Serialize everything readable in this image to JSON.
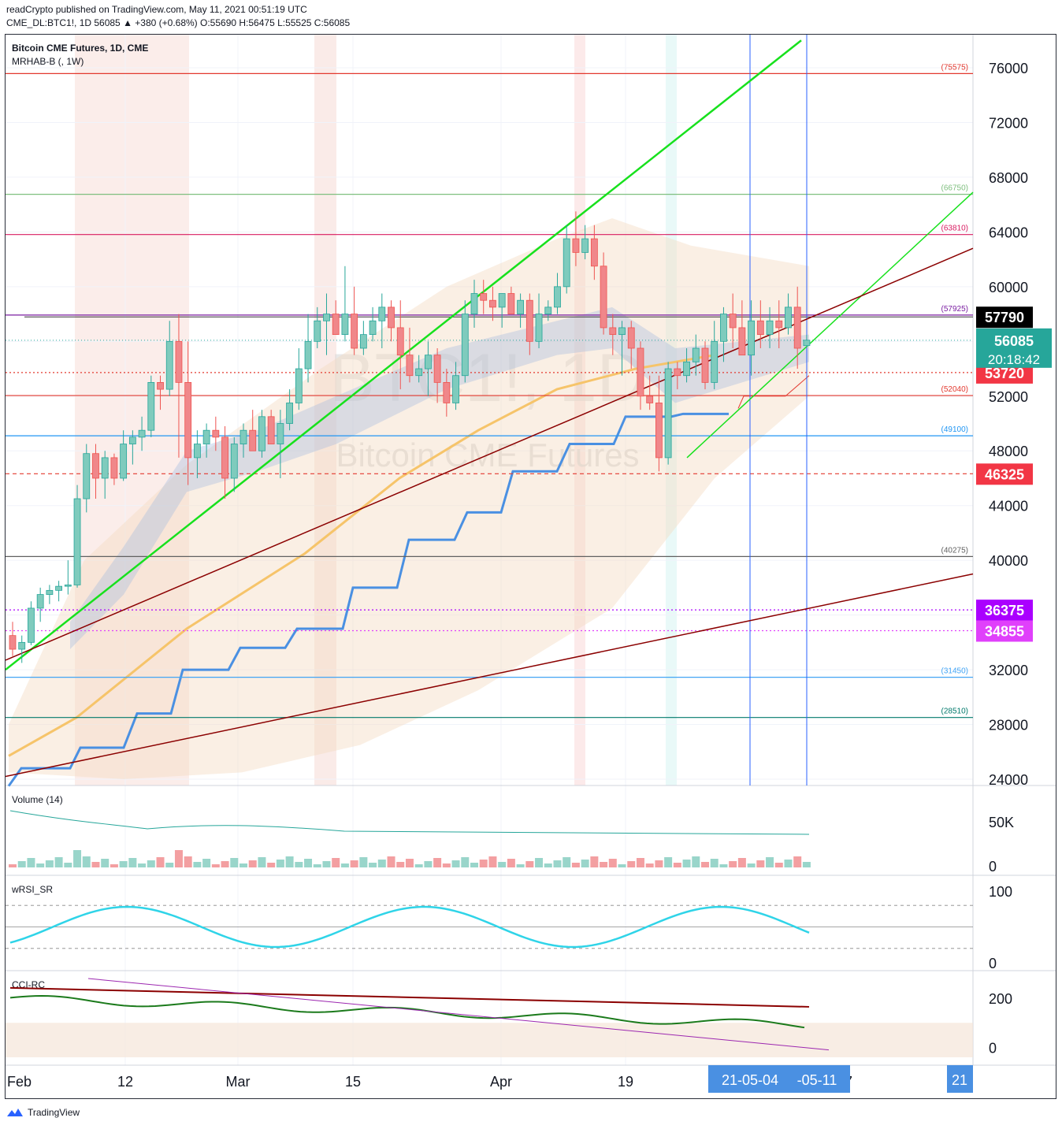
{
  "header": {
    "line1": "readCrypto published on TradingView.com, May 11, 2021 00:51:19 UTC",
    "line2": "CME_DL:BTC1!, 1D 56085 ▲ +380 (+0.68%) O:55690 H:56475 L:55525 C:56085"
  },
  "legend": {
    "title": "Bitcoin CME Futures, 1D, CME",
    "indicator": "MRHAB-B (, 1W)"
  },
  "watermark": {
    "symbol": "BTC1!, 1D",
    "name": "Bitcoin CME Futures"
  },
  "colors": {
    "up": "#7fcbbd",
    "down": "#f0878a",
    "red_level": "#e3392f",
    "green_trend": "#17e11d",
    "dark_red_trend": "#8b0000",
    "blue_steps": "#4a90e2",
    "orange_ma": "#f6c46a"
  },
  "chart_data": [
    {
      "type": "candlestick",
      "title": "Bitcoin CME Futures, 1D, CME",
      "ylim": [
        23000,
        78000
      ],
      "y_ticks": [
        "76000",
        "72000",
        "68000",
        "64000",
        "60000",
        "56000",
        "52000",
        "48000",
        "44000",
        "40000",
        "36000",
        "32000",
        "28000",
        "24000"
      ],
      "x_ticks": [
        "Feb",
        "12",
        "Mar",
        "15",
        "Apr",
        "19",
        "7",
        "21"
      ],
      "x_cursor_labels": [
        "21-05-04",
        "-05-11"
      ],
      "last_price": 56085,
      "countdown": "20:18:42",
      "price_tags": [
        {
          "label": "57790",
          "value": 57790,
          "color": "#000000"
        },
        {
          "label": "53720",
          "value": 53720,
          "color": "#f23645"
        },
        {
          "label": "46325",
          "value": 46325,
          "color": "#f23645"
        },
        {
          "label": "36375",
          "value": 36375,
          "color": "#aa00ff"
        },
        {
          "label": "34855",
          "value": 34855,
          "color": "#e040fb"
        }
      ],
      "levels": [
        {
          "label": "(75575)",
          "value": 75575,
          "color": "#e3392f"
        },
        {
          "label": "(66750)",
          "value": 66750,
          "color": "#7fbf7f"
        },
        {
          "label": "(63810)",
          "value": 63810,
          "color": "#d81b60"
        },
        {
          "label": "(57925)",
          "value": 57925,
          "color": "#7b1fa2"
        },
        {
          "label": "(52040)",
          "value": 52040,
          "color": "#e3392f"
        },
        {
          "label": "(49100)",
          "value": 49100,
          "color": "#2196f3"
        },
        {
          "label": "(40275)",
          "value": 40275,
          "color": "#616161"
        },
        {
          "label": "(31450)",
          "value": 31450,
          "color": "#42a5f5"
        },
        {
          "label": "(28510)",
          "value": 28510,
          "color": "#00796b"
        }
      ],
      "candles": [
        [
          34500,
          35500,
          33000,
          33500
        ],
        [
          33500,
          34500,
          32500,
          34000
        ],
        [
          34000,
          37000,
          33800,
          36500
        ],
        [
          36500,
          38000,
          35500,
          37500
        ],
        [
          37500,
          38200,
          36800,
          37800
        ],
        [
          37800,
          38500,
          37000,
          38100
        ],
        [
          38100,
          40000,
          37500,
          38200
        ],
        [
          38200,
          45500,
          38000,
          44500
        ],
        [
          44500,
          48500,
          43500,
          47800
        ],
        [
          47800,
          48500,
          44500,
          46000
        ],
        [
          46000,
          48000,
          44500,
          47500
        ],
        [
          47500,
          47800,
          45500,
          46000
        ],
        [
          46000,
          49500,
          45800,
          48500
        ],
        [
          48500,
          49500,
          47000,
          49000
        ],
        [
          49000,
          50500,
          48000,
          49500
        ],
        [
          49500,
          53500,
          49000,
          53000
        ],
        [
          53000,
          53500,
          51000,
          52500
        ],
        [
          52500,
          57500,
          52000,
          56000
        ],
        [
          56000,
          58000,
          47500,
          53000
        ],
        [
          53000,
          56000,
          45500,
          47500
        ],
        [
          47500,
          49500,
          46000,
          48500
        ],
        [
          48500,
          50000,
          47500,
          49500
        ],
        [
          49500,
          50500,
          48000,
          49000
        ],
        [
          49000,
          49800,
          44500,
          46000
        ],
        [
          46000,
          49000,
          45000,
          48500
        ],
        [
          48500,
          50000,
          47500,
          49500
        ],
        [
          49500,
          51000,
          48000,
          48000
        ],
        [
          48000,
          51000,
          47500,
          50500
        ],
        [
          50500,
          51000,
          48500,
          48500
        ],
        [
          48500,
          51000,
          46000,
          50000
        ],
        [
          50000,
          52500,
          49500,
          51500
        ],
        [
          51500,
          55500,
          51000,
          54000
        ],
        [
          54000,
          58000,
          53000,
          56000
        ],
        [
          56000,
          58500,
          55500,
          57500
        ],
        [
          57500,
          59500,
          55000,
          58000
        ],
        [
          58000,
          59000,
          57000,
          56500
        ],
        [
          56500,
          61500,
          56000,
          58000
        ],
        [
          58000,
          60000,
          55000,
          55500
        ],
        [
          55500,
          57500,
          55000,
          56500
        ],
        [
          56500,
          58500,
          56000,
          57500
        ],
        [
          57500,
          59500,
          55500,
          58500
        ],
        [
          58500,
          59000,
          56000,
          57000
        ],
        [
          57000,
          59000,
          52500,
          55000
        ],
        [
          55000,
          57000,
          53000,
          53500
        ],
        [
          53500,
          55000,
          53000,
          54000
        ],
        [
          54000,
          56000,
          52000,
          55000
        ],
        [
          55000,
          55500,
          51500,
          53000
        ],
        [
          53000,
          54000,
          50500,
          51500
        ],
        [
          51500,
          54500,
          51000,
          53500
        ],
        [
          53500,
          59000,
          53000,
          58000
        ],
        [
          58000,
          60500,
          57000,
          59500
        ],
        [
          59500,
          60500,
          58000,
          59000
        ],
        [
          59000,
          60000,
          57500,
          58500
        ],
        [
          58500,
          59500,
          57000,
          59500
        ],
        [
          59500,
          60000,
          58000,
          58000
        ],
        [
          58000,
          59500,
          57000,
          59000
        ],
        [
          59000,
          59500,
          55000,
          56000
        ],
        [
          56000,
          59500,
          55500,
          58000
        ],
        [
          58000,
          59000,
          57500,
          58500
        ],
        [
          58500,
          61000,
          58000,
          60000
        ],
        [
          60000,
          64500,
          59500,
          63500
        ],
        [
          63500,
          65500,
          61500,
          62500
        ],
        [
          62500,
          64500,
          62000,
          63500
        ],
        [
          63500,
          64500,
          60500,
          61500
        ],
        [
          61500,
          62500,
          56500,
          57000
        ],
        [
          57000,
          58000,
          55000,
          56500
        ],
        [
          56500,
          57500,
          53500,
          57000
        ],
        [
          57000,
          57500,
          54000,
          55500
        ],
        [
          55500,
          56000,
          51000,
          52000
        ],
        [
          52000,
          53500,
          51000,
          51500
        ],
        [
          51500,
          53500,
          46500,
          47500
        ],
        [
          47500,
          54500,
          47000,
          54000
        ],
        [
          54000,
          54500,
          52500,
          53500
        ],
        [
          53500,
          55500,
          53000,
          54500
        ],
        [
          54500,
          56500,
          53500,
          55500
        ],
        [
          55500,
          56000,
          52500,
          53000
        ],
        [
          53000,
          57500,
          52500,
          56000
        ],
        [
          56000,
          58500,
          54500,
          58000
        ],
        [
          58000,
          59500,
          55500,
          57000
        ],
        [
          57000,
          59000,
          55500,
          55000
        ],
        [
          55000,
          59000,
          53500,
          57500
        ],
        [
          57500,
          59000,
          55500,
          56500
        ],
        [
          56500,
          58500,
          55500,
          57500
        ],
        [
          57500,
          59000,
          55500,
          57000
        ],
        [
          57000,
          59500,
          56500,
          58500
        ],
        [
          58500,
          60000,
          54000,
          55500
        ],
        [
          55690,
          56475,
          55525,
          56085
        ]
      ]
    },
    {
      "type": "bar",
      "title": "Volume (14)",
      "y_ticks": [
        "50K",
        "0"
      ],
      "ylim": [
        0,
        75000
      ]
    },
    {
      "type": "line",
      "title": "wRSI_SR",
      "y_ticks": [
        "100",
        "0"
      ],
      "ylim": [
        0,
        100
      ]
    },
    {
      "type": "line",
      "title": "CCI-RC",
      "y_ticks": [
        "200",
        "0"
      ],
      "ylim": [
        -40,
        280
      ]
    }
  ]
}
